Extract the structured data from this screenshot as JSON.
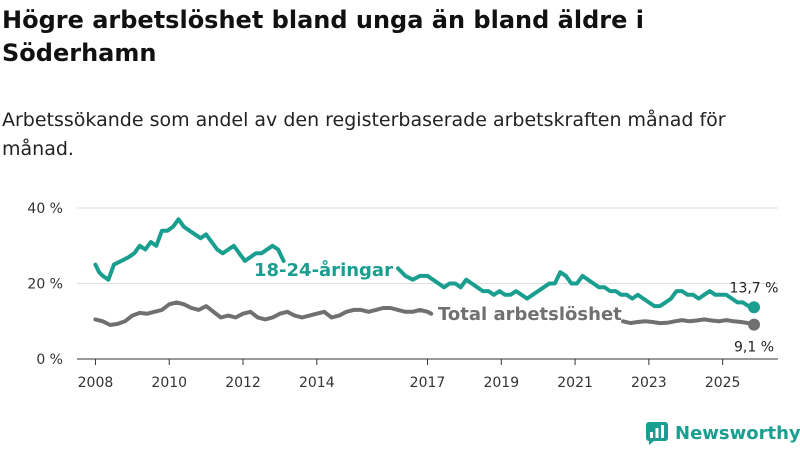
{
  "title": "Högre arbetslöshet bland unga än bland äldre i Söderhamn",
  "subtitle": "Arbetssökande som andel av den registerbaserade arbetskraften månad för månad.",
  "brand": {
    "name": "Newsworthy",
    "color": "#1a9e8f"
  },
  "chart_data": {
    "type": "line",
    "x_range": [
      2007.5,
      2026.5
    ],
    "ylim": [
      0,
      42
    ],
    "x_ticks": [
      2008,
      2010,
      2012,
      2014,
      2017,
      2019,
      2021,
      2023,
      2025
    ],
    "y_ticks": [
      {
        "value": 0,
        "label": "0 %"
      },
      {
        "value": 20,
        "label": "20 %"
      },
      {
        "value": 40,
        "label": "40 %"
      }
    ],
    "grid": true,
    "series": [
      {
        "name": "18-24-åringar",
        "color": "#1a9e8f",
        "end_label": "13,7 %",
        "points": [
          [
            2008.0,
            25
          ],
          [
            2008.1,
            23
          ],
          [
            2008.2,
            22
          ],
          [
            2008.35,
            21
          ],
          [
            2008.5,
            25
          ],
          [
            2008.7,
            26
          ],
          [
            2008.9,
            27
          ],
          [
            2009.05,
            28
          ],
          [
            2009.2,
            30
          ],
          [
            2009.35,
            29
          ],
          [
            2009.5,
            31
          ],
          [
            2009.65,
            30
          ],
          [
            2009.8,
            34
          ],
          [
            2009.95,
            34
          ],
          [
            2010.1,
            35
          ],
          [
            2010.25,
            37
          ],
          [
            2010.4,
            35
          ],
          [
            2010.55,
            34
          ],
          [
            2010.7,
            33
          ],
          [
            2010.85,
            32
          ],
          [
            2011.0,
            33
          ],
          [
            2011.15,
            31
          ],
          [
            2011.3,
            29
          ],
          [
            2011.45,
            28
          ],
          [
            2011.6,
            29
          ],
          [
            2011.75,
            30
          ],
          [
            2011.9,
            28
          ],
          [
            2012.05,
            26
          ],
          [
            2012.2,
            27
          ],
          [
            2012.35,
            28
          ],
          [
            2012.5,
            28
          ],
          [
            2012.65,
            29
          ],
          [
            2012.8,
            30
          ],
          [
            2012.95,
            29
          ],
          [
            2013.1,
            26
          ]
        ],
        "points_segment2": [
          [
            2016.2,
            24
          ],
          [
            2016.4,
            22
          ],
          [
            2016.6,
            21
          ],
          [
            2016.8,
            22
          ],
          [
            2017.0,
            22
          ],
          [
            2017.15,
            21
          ],
          [
            2017.3,
            20
          ],
          [
            2017.45,
            19
          ],
          [
            2017.6,
            20
          ],
          [
            2017.75,
            20
          ],
          [
            2017.9,
            19
          ],
          [
            2018.05,
            21
          ],
          [
            2018.2,
            20
          ],
          [
            2018.35,
            19
          ],
          [
            2018.5,
            18
          ],
          [
            2018.65,
            18
          ],
          [
            2018.8,
            17
          ],
          [
            2018.95,
            18
          ],
          [
            2019.1,
            17
          ],
          [
            2019.25,
            17
          ],
          [
            2019.4,
            18
          ],
          [
            2019.55,
            17
          ],
          [
            2019.7,
            16
          ],
          [
            2019.85,
            17
          ],
          [
            2020.0,
            18
          ],
          [
            2020.15,
            19
          ],
          [
            2020.3,
            20
          ],
          [
            2020.45,
            20
          ],
          [
            2020.6,
            23
          ],
          [
            2020.75,
            22
          ],
          [
            2020.9,
            20
          ],
          [
            2021.05,
            20
          ],
          [
            2021.2,
            22
          ],
          [
            2021.35,
            21
          ],
          [
            2021.5,
            20
          ],
          [
            2021.65,
            19
          ],
          [
            2021.8,
            19
          ],
          [
            2021.95,
            18
          ],
          [
            2022.1,
            18
          ],
          [
            2022.25,
            17
          ],
          [
            2022.4,
            17
          ],
          [
            2022.55,
            16
          ],
          [
            2022.7,
            17
          ],
          [
            2022.85,
            16
          ],
          [
            2023.0,
            15
          ],
          [
            2023.15,
            14
          ],
          [
            2023.3,
            14
          ],
          [
            2023.45,
            15
          ],
          [
            2023.6,
            16
          ],
          [
            2023.75,
            18
          ],
          [
            2023.9,
            18
          ],
          [
            2024.05,
            17
          ],
          [
            2024.2,
            17
          ],
          [
            2024.35,
            16
          ],
          [
            2024.5,
            17
          ],
          [
            2024.65,
            18
          ],
          [
            2024.8,
            17
          ],
          [
            2024.95,
            17
          ],
          [
            2025.1,
            17
          ],
          [
            2025.25,
            16
          ],
          [
            2025.4,
            15
          ],
          [
            2025.55,
            15
          ],
          [
            2025.7,
            14
          ],
          [
            2025.85,
            13.7
          ]
        ]
      },
      {
        "name": "Total arbetslöshet",
        "color": "#707070",
        "end_label": "9,1 %",
        "points": [
          [
            2008.0,
            10.5
          ],
          [
            2008.2,
            10
          ],
          [
            2008.4,
            9
          ],
          [
            2008.6,
            9.3
          ],
          [
            2008.8,
            10
          ],
          [
            2009.0,
            11.5
          ],
          [
            2009.2,
            12.2
          ],
          [
            2009.4,
            12
          ],
          [
            2009.6,
            12.5
          ],
          [
            2009.8,
            13
          ],
          [
            2010.0,
            14.5
          ],
          [
            2010.2,
            15
          ],
          [
            2010.4,
            14.5
          ],
          [
            2010.6,
            13.5
          ],
          [
            2010.8,
            13
          ],
          [
            2011.0,
            14
          ],
          [
            2011.2,
            12.5
          ],
          [
            2011.4,
            11
          ],
          [
            2011.6,
            11.5
          ],
          [
            2011.8,
            11
          ],
          [
            2012.0,
            12
          ],
          [
            2012.2,
            12.5
          ],
          [
            2012.4,
            11
          ],
          [
            2012.6,
            10.5
          ],
          [
            2012.8,
            11
          ],
          [
            2013.0,
            12
          ],
          [
            2013.2,
            12.5
          ],
          [
            2013.4,
            11.5
          ],
          [
            2013.6,
            11
          ],
          [
            2013.8,
            11.5
          ],
          [
            2014.0,
            12
          ],
          [
            2014.2,
            12.5
          ],
          [
            2014.4,
            11
          ],
          [
            2014.6,
            11.5
          ],
          [
            2014.8,
            12.5
          ],
          [
            2015.0,
            13
          ],
          [
            2015.2,
            13
          ],
          [
            2015.4,
            12.5
          ],
          [
            2015.6,
            13
          ],
          [
            2015.8,
            13.5
          ],
          [
            2016.0,
            13.5
          ],
          [
            2016.2,
            13
          ],
          [
            2016.4,
            12.5
          ],
          [
            2016.6,
            12.5
          ],
          [
            2016.8,
            13
          ],
          [
            2017.0,
            12.5
          ],
          [
            2017.1,
            12
          ]
        ],
        "points_segment2": [
          [
            2022.3,
            10
          ],
          [
            2022.5,
            9.5
          ],
          [
            2022.7,
            9.8
          ],
          [
            2022.9,
            10
          ],
          [
            2023.1,
            9.8
          ],
          [
            2023.3,
            9.5
          ],
          [
            2023.5,
            9.6
          ],
          [
            2023.7,
            10
          ],
          [
            2023.9,
            10.3
          ],
          [
            2024.1,
            10
          ],
          [
            2024.3,
            10.2
          ],
          [
            2024.5,
            10.5
          ],
          [
            2024.7,
            10.2
          ],
          [
            2024.9,
            10
          ],
          [
            2025.1,
            10.3
          ],
          [
            2025.3,
            10
          ],
          [
            2025.5,
            9.8
          ],
          [
            2025.7,
            9.5
          ],
          [
            2025.85,
            9.1
          ]
        ]
      }
    ],
    "annotations": [
      {
        "series": "18-24-åringar",
        "text": "18-24-åringar"
      },
      {
        "series": "Total arbetslöshet",
        "text": "Total arbetslöshet"
      }
    ]
  }
}
